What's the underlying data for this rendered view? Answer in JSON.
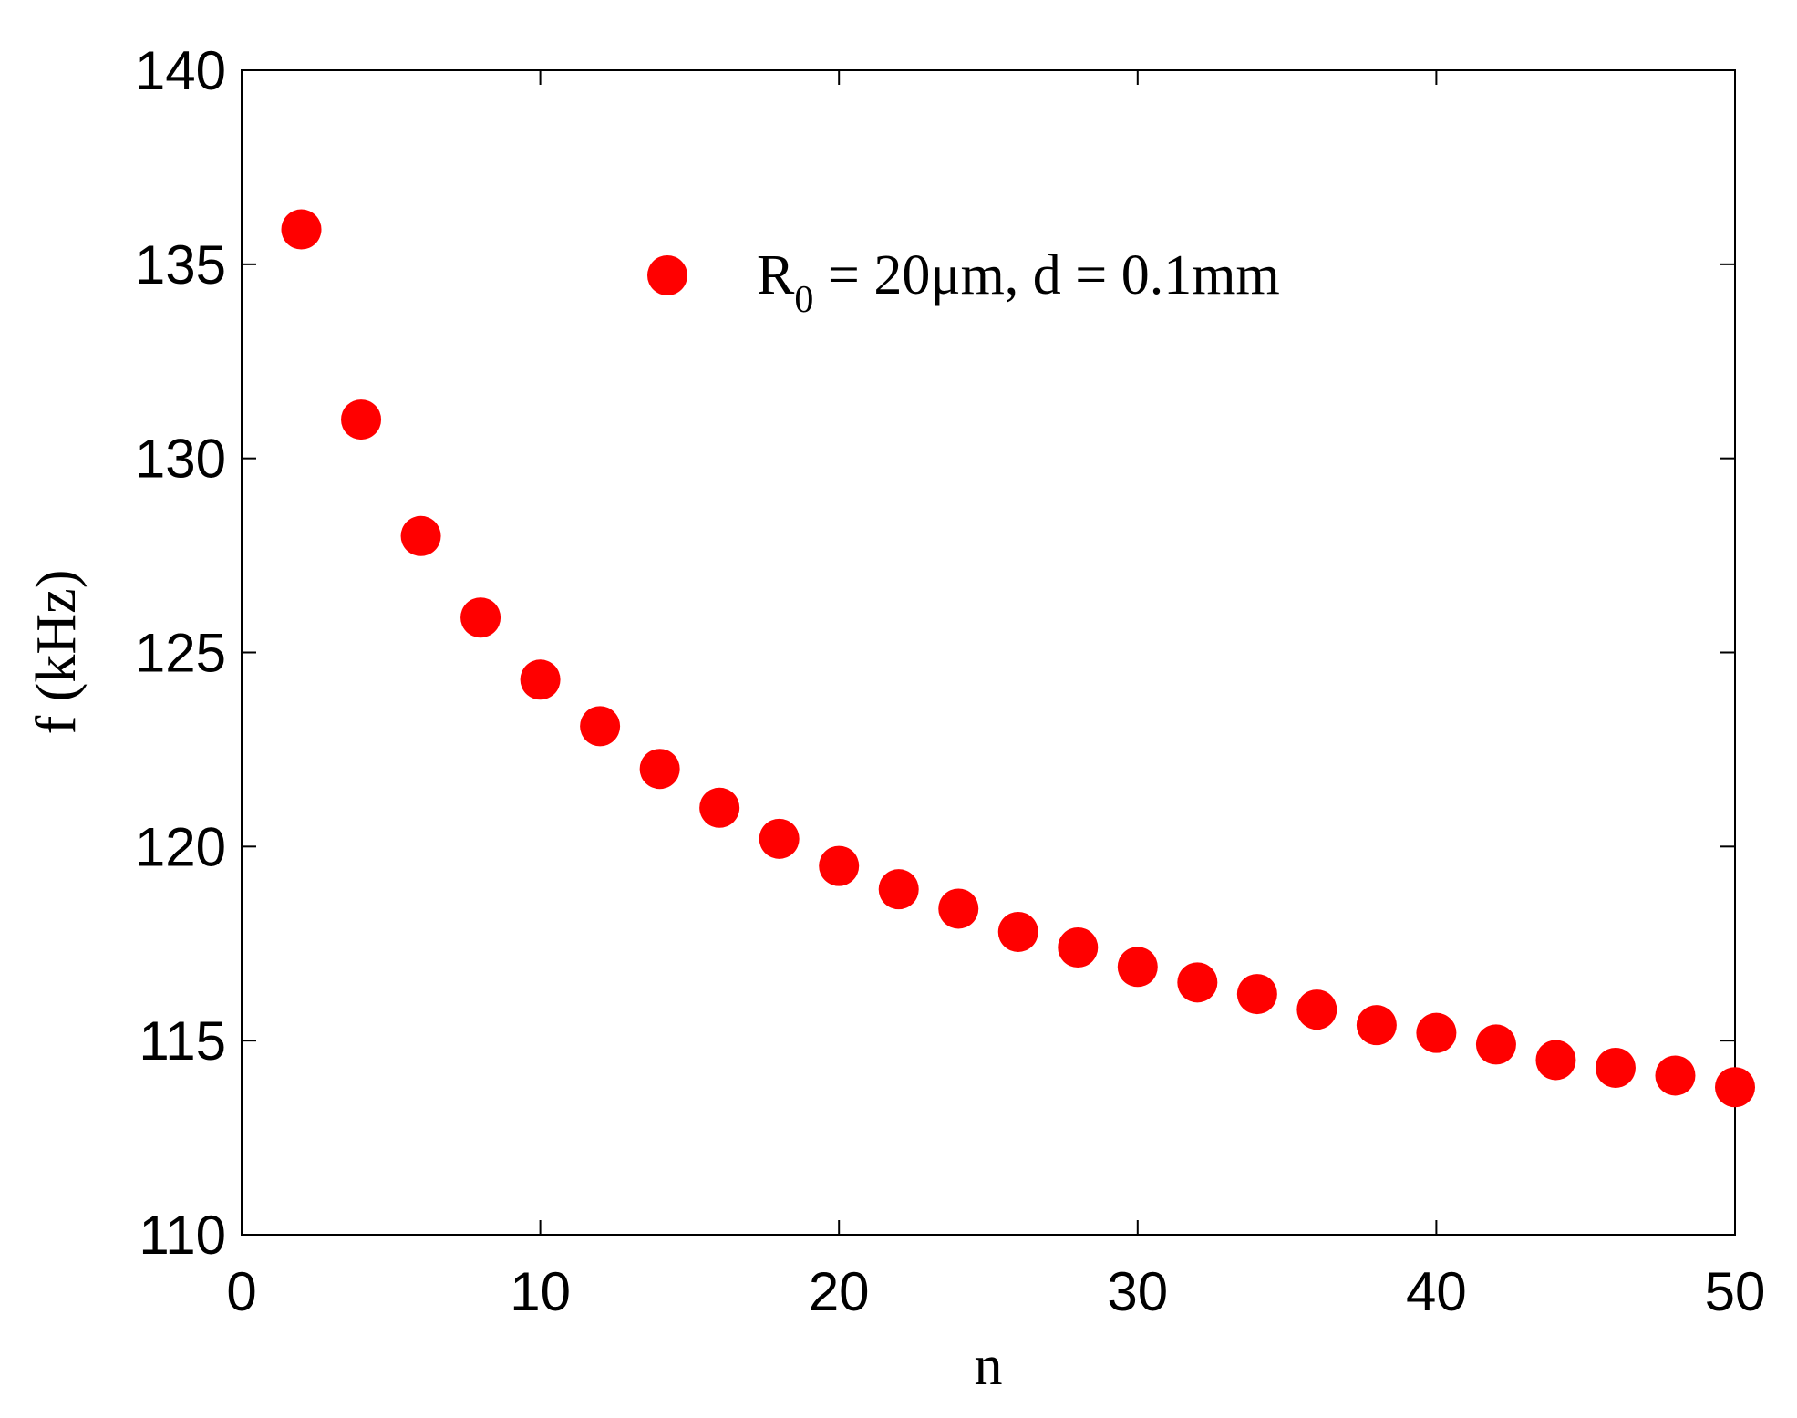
{
  "chart_data": {
    "type": "scatter",
    "xlabel": "n",
    "ylabel": "f  (kHz)",
    "xlim": [
      0,
      50
    ],
    "ylim": [
      110,
      140
    ],
    "xticks": [
      0,
      10,
      20,
      30,
      40,
      50
    ],
    "yticks": [
      110,
      115,
      120,
      125,
      130,
      135,
      140
    ],
    "grid": false,
    "legend_position": "top-center",
    "series": [
      {
        "color": "#ff0000",
        "legend": {
          "main": "R",
          "sub": "0",
          "rest": " = 20μm, d = 0.1mm"
        },
        "x": [
          2,
          4,
          6,
          8,
          10,
          12,
          14,
          16,
          18,
          20,
          22,
          24,
          26,
          28,
          30,
          32,
          34,
          36,
          38,
          40,
          42,
          44,
          46,
          48,
          50
        ],
        "y": [
          135.9,
          131.0,
          128.0,
          125.9,
          124.3,
          123.1,
          122.0,
          121.0,
          120.2,
          119.5,
          118.9,
          118.4,
          117.8,
          117.4,
          116.9,
          116.5,
          116.2,
          115.8,
          115.4,
          115.2,
          114.9,
          114.5,
          114.3,
          114.1,
          113.8
        ]
      }
    ]
  }
}
